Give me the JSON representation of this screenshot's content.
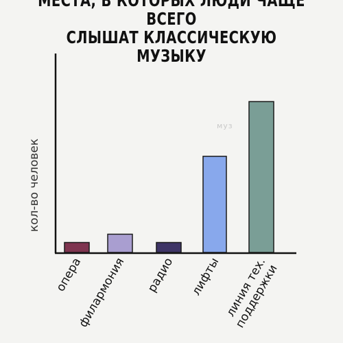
{
  "title": {
    "line1": "МЕСТА, В КОТОРЫХ ЛЮДИ ЧАЩЕ ВСЕГО",
    "line2": "СЛЫШАТ КЛАССИЧЕСКУЮ МУЗЫКУ"
  },
  "watermark": "муз",
  "chart_data": {
    "type": "bar",
    "title": "МЕСТА, В КОТОРЫХ ЛЮДИ ЧАЩЕ ВСЕГО СЛЫШАТ КЛАССИЧЕСКУЮ МУЗЫКУ",
    "ylabel": "кол-во человек",
    "xlabel": "",
    "categories": [
      "опера",
      "филармония",
      "радио",
      "лифты",
      "линия тех. поддержки"
    ],
    "values": [
      6,
      11,
      6,
      58,
      91
    ],
    "colors": [
      "#7f3550",
      "#a99ed0",
      "#3e3466",
      "#88a8ec",
      "#7a9e96"
    ],
    "ylim": [
      0,
      120
    ],
    "grid": false
  }
}
